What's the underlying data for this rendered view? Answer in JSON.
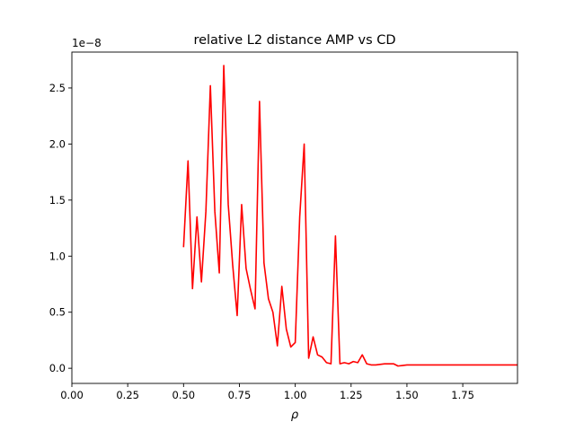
{
  "chart_data": {
    "type": "line",
    "title": "relative L2 distance AMP vs CD",
    "xlabel": "ρ",
    "ylabel": "",
    "y_offset_label": "1e−8",
    "xlim": [
      0.0,
      1.995
    ],
    "ylim": [
      -0.135,
      2.82
    ],
    "grid": false,
    "x_ticks": [
      0.0,
      0.25,
      0.5,
      0.75,
      1.0,
      1.25,
      1.5,
      1.75
    ],
    "x_tick_labels": [
      "0.00",
      "0.25",
      "0.50",
      "0.75",
      "1.00",
      "1.25",
      "1.50",
      "1.75"
    ],
    "y_ticks": [
      0.0,
      0.5,
      1.0,
      1.5,
      2.0,
      2.5
    ],
    "y_tick_labels": [
      "0.0",
      "0.5",
      "1.0",
      "1.5",
      "2.0",
      "2.5"
    ],
    "series": [
      {
        "color": "#ff0000",
        "x": [
          0.5,
          0.52,
          0.54,
          0.56,
          0.58,
          0.6,
          0.62,
          0.64,
          0.66,
          0.68,
          0.7,
          0.72,
          0.74,
          0.76,
          0.78,
          0.8,
          0.82,
          0.84,
          0.86,
          0.88,
          0.9,
          0.92,
          0.94,
          0.96,
          0.98,
          1.0,
          1.02,
          1.04,
          1.06,
          1.08,
          1.1,
          1.12,
          1.14,
          1.16,
          1.18,
          1.2,
          1.22,
          1.24,
          1.26,
          1.28,
          1.3,
          1.32,
          1.34,
          1.36,
          1.38,
          1.4,
          1.42,
          1.44,
          1.46,
          1.48,
          1.5,
          1.52,
          1.54,
          1.56,
          1.58,
          1.6,
          1.62,
          1.64,
          1.66,
          1.68,
          1.7,
          1.72,
          1.74,
          1.76,
          1.78,
          1.8,
          1.82,
          1.84,
          1.86,
          1.88,
          1.9,
          1.92,
          1.94,
          1.96,
          1.98,
          2.0
        ],
        "y": [
          1.08,
          1.85,
          0.71,
          1.35,
          0.77,
          1.4,
          2.52,
          1.4,
          0.85,
          2.7,
          1.46,
          0.92,
          0.47,
          1.46,
          0.89,
          0.7,
          0.53,
          2.38,
          0.94,
          0.62,
          0.5,
          0.2,
          0.73,
          0.35,
          0.19,
          0.23,
          1.35,
          2.0,
          0.09,
          0.28,
          0.12,
          0.1,
          0.05,
          0.04,
          1.18,
          0.04,
          0.05,
          0.04,
          0.06,
          0.05,
          0.12,
          0.04,
          0.03,
          0.03,
          0.035,
          0.04,
          0.04,
          0.04,
          0.02,
          0.025,
          0.03,
          0.03,
          0.03,
          0.03,
          0.03,
          0.03,
          0.03,
          0.03,
          0.03,
          0.03,
          0.03,
          0.03,
          0.03,
          0.03,
          0.03,
          0.03,
          0.03,
          0.03,
          0.03,
          0.03,
          0.03,
          0.03,
          0.03,
          0.03,
          0.03,
          0.03
        ]
      }
    ]
  }
}
